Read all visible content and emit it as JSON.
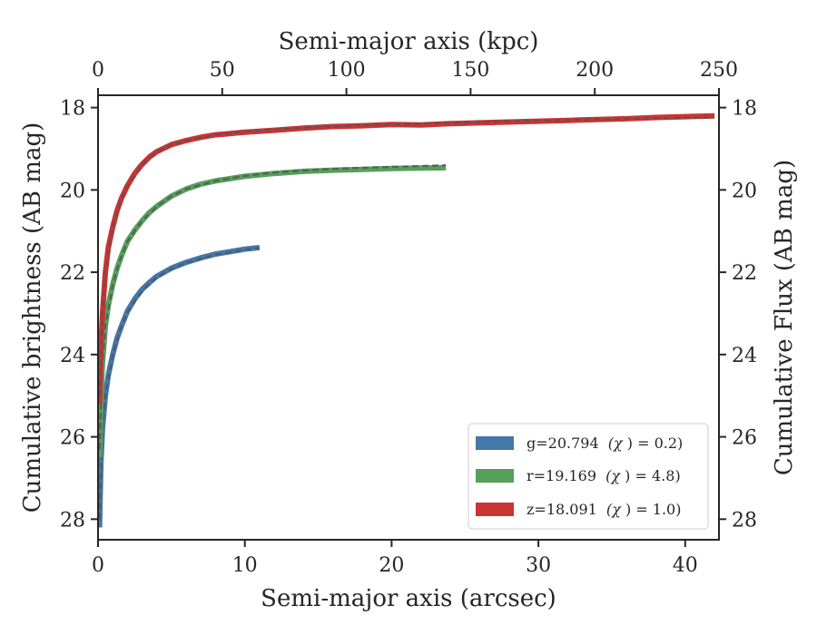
{
  "chart_data": {
    "type": "line",
    "title": "",
    "xlabel": "Semi-major axis (arcsec)",
    "ylabel": "Cumulative brightness (AB mag)",
    "x2label": "Semi-major axis (kpc)",
    "y2label": "Cumulative Flux (AB mag)",
    "xlim": [
      0,
      42.3
    ],
    "ylim": [
      28.5,
      17.7
    ],
    "x2lim": [
      0,
      250
    ],
    "y_inverted": true,
    "xticks": [
      "0",
      "10",
      "20",
      "30",
      "40"
    ],
    "yticks": [
      "18",
      "20",
      "22",
      "24",
      "26",
      "28"
    ],
    "x2ticks": [
      "0",
      "50",
      "100",
      "150",
      "200",
      "250"
    ],
    "y2ticks": [
      "18",
      "20",
      "22",
      "24",
      "26",
      "28"
    ],
    "grid": false,
    "legend_position": "lower-right",
    "series": [
      {
        "name": "g=20.794",
        "chi_label": "(χ",
        "chi_value": ") = 0.2)",
        "color": "#4477aa",
        "x": [
          0.1,
          0.2,
          0.3,
          0.5,
          0.7,
          1.0,
          1.3,
          1.6,
          2.0,
          2.5,
          3.0,
          3.5,
          4.0,
          5.0,
          6.0,
          7.0,
          8.0,
          9.0,
          10.0,
          11.0
        ],
        "y": [
          28.2,
          26.6,
          25.8,
          25.0,
          24.5,
          24.0,
          23.6,
          23.3,
          22.95,
          22.65,
          22.42,
          22.25,
          22.1,
          21.9,
          21.76,
          21.65,
          21.56,
          21.5,
          21.44,
          21.4
        ],
        "model_x": [
          0.1,
          0.3,
          0.5,
          1.0,
          1.5,
          2.0,
          3.0,
          4.0,
          5.0,
          6.0,
          7.0,
          8.0,
          9.0,
          10.0,
          11.0
        ],
        "model_y": [
          28.0,
          25.8,
          25.0,
          24.0,
          23.4,
          22.98,
          22.45,
          22.12,
          21.92,
          21.77,
          21.67,
          21.58,
          21.51,
          21.45,
          21.41
        ]
      },
      {
        "name": "r=19.169",
        "chi_label": "(χ",
        "chi_value": ") = 4.8)",
        "color": "#55a05a",
        "x": [
          0.1,
          0.2,
          0.3,
          0.5,
          0.7,
          1.0,
          1.3,
          1.6,
          2.0,
          2.5,
          3.0,
          3.5,
          4.0,
          5.0,
          6.0,
          7.0,
          8.0,
          10.0,
          12.0,
          14.0,
          16.0,
          18.0,
          20.0,
          22.0,
          23.7
        ],
        "y": [
          26.5,
          25.0,
          24.2,
          23.3,
          22.8,
          22.3,
          21.9,
          21.6,
          21.25,
          20.98,
          20.75,
          20.55,
          20.4,
          20.15,
          19.98,
          19.86,
          19.78,
          19.67,
          19.6,
          19.55,
          19.52,
          19.5,
          19.48,
          19.47,
          19.46
        ],
        "model_x": [
          0.1,
          0.3,
          0.5,
          1.0,
          1.5,
          2.0,
          3.0,
          4.0,
          5.0,
          6.0,
          8.0,
          10.0,
          12.0,
          14.0,
          16.0,
          18.0,
          20.0,
          22.0,
          23.7
        ],
        "model_y": [
          26.3,
          24.2,
          23.3,
          22.3,
          21.7,
          21.25,
          20.75,
          20.4,
          20.15,
          19.98,
          19.78,
          19.66,
          19.58,
          19.53,
          19.49,
          19.46,
          19.44,
          19.42,
          19.4
        ]
      },
      {
        "name": "z=18.091",
        "chi_label": "(χ",
        "chi_value": ") = 1.0)",
        "color": "#cc3333",
        "x": [
          0.1,
          0.2,
          0.3,
          0.5,
          0.7,
          1.0,
          1.3,
          1.6,
          2.0,
          2.5,
          3.0,
          3.5,
          4.0,
          5.0,
          6.0,
          7.0,
          8.0,
          10.0,
          12.0,
          14.0,
          16.0,
          18.0,
          20.0,
          22.0,
          24.0,
          26.0,
          28.0,
          30.0,
          32.0,
          34.0,
          36.0,
          38.0,
          40.0,
          42.0
        ],
        "y": [
          25.2,
          23.8,
          23.0,
          22.0,
          21.4,
          20.9,
          20.5,
          20.2,
          19.9,
          19.6,
          19.38,
          19.2,
          19.07,
          18.9,
          18.8,
          18.72,
          18.66,
          18.6,
          18.55,
          18.5,
          18.46,
          18.44,
          18.41,
          18.42,
          18.39,
          18.37,
          18.35,
          18.33,
          18.31,
          18.29,
          18.27,
          18.24,
          18.22,
          18.2
        ],
        "model_x": [
          0.1,
          0.3,
          0.5,
          1.0,
          1.5,
          2.0,
          3.0,
          4.0,
          5.0,
          6.0,
          8.0,
          10.0,
          12.0,
          14.0,
          16.0,
          18.0,
          20.0,
          22.0,
          24.0,
          26.0,
          28.0,
          30.0,
          32.0,
          34.0,
          36.0,
          38.0,
          40.0,
          42.0
        ],
        "model_y": [
          25.0,
          23.0,
          22.0,
          20.9,
          20.3,
          19.9,
          19.38,
          19.07,
          18.9,
          18.8,
          18.66,
          18.58,
          18.53,
          18.49,
          18.46,
          18.43,
          18.41,
          18.39,
          18.37,
          18.35,
          18.33,
          18.31,
          18.3,
          18.28,
          18.27,
          18.26,
          18.25,
          18.24
        ]
      }
    ]
  }
}
